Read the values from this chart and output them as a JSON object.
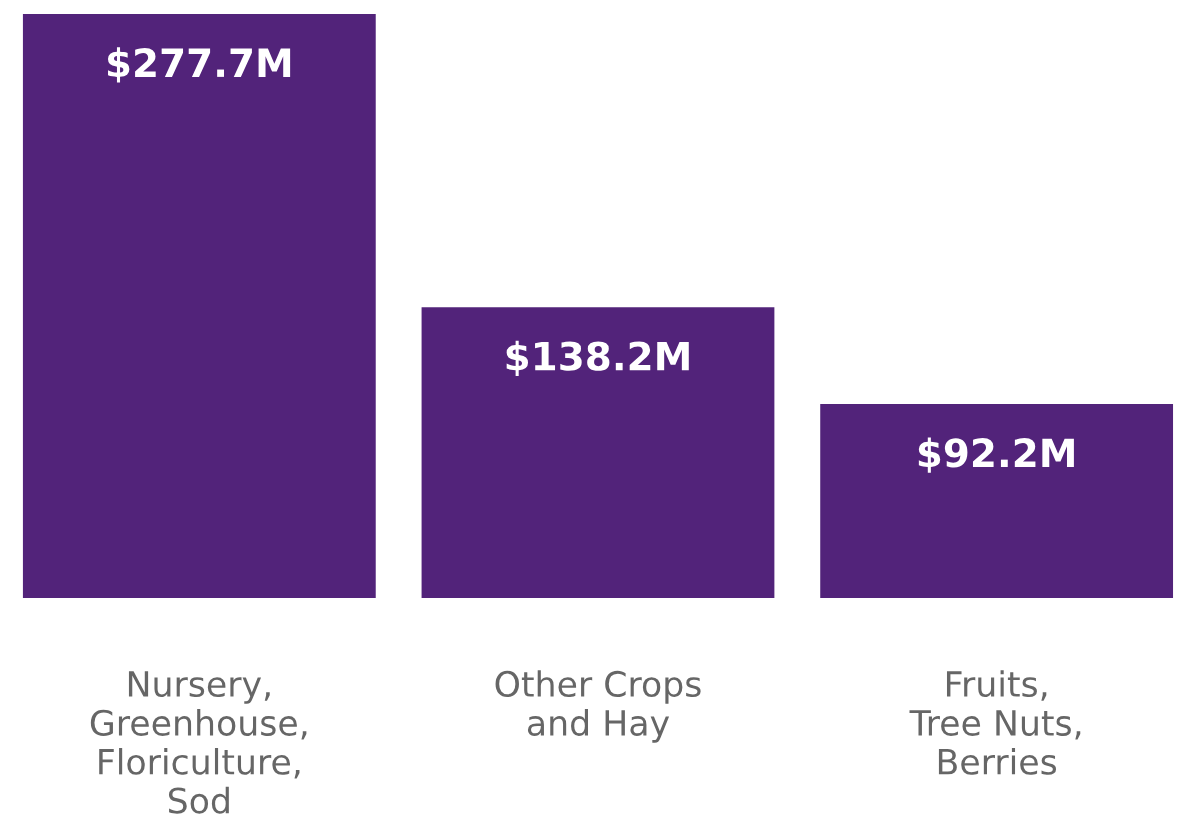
{
  "chart_data": {
    "type": "bar",
    "categories": [
      "Nursery,\nGreenhouse,\nFloriculture,\nSod",
      "Other Crops\nand Hay",
      "Fruits,\nTree Nuts,\nBerries"
    ],
    "values": [
      277.7,
      138.2,
      92.2
    ],
    "color": "#52237a",
    "value_labels": [
      "$277.7M",
      "$138.2M",
      "$92.2M"
    ],
    "grid": false,
    "legend": false
  }
}
